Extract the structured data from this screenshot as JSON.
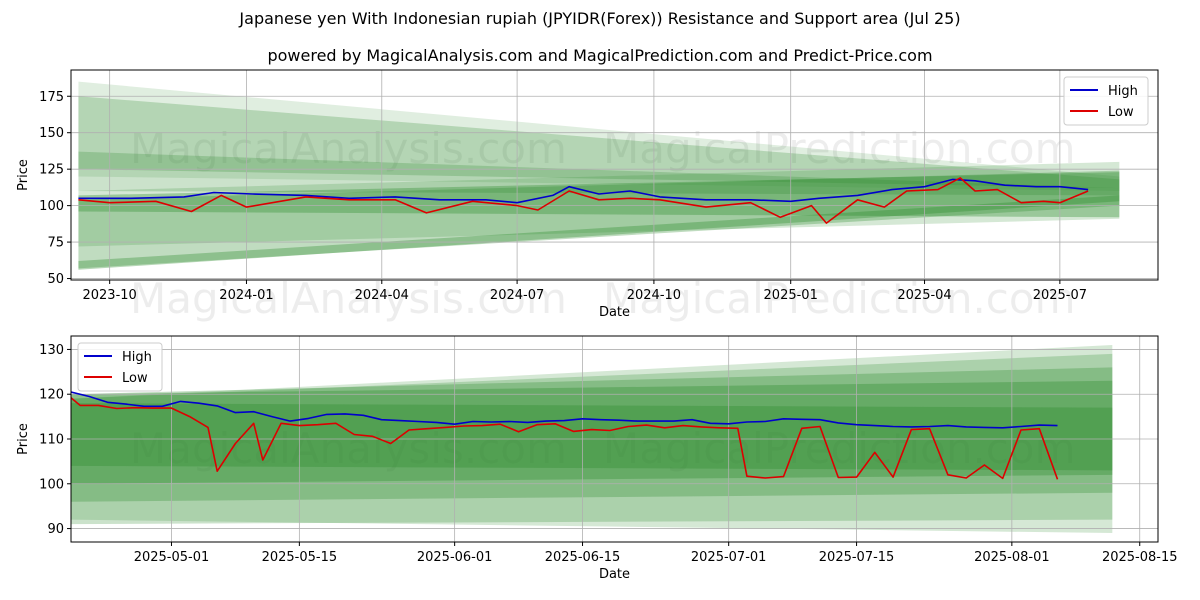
{
  "title": "Japanese yen With Indonesian rupiah (JPYIDR(Forex)) Resistance and Support area (Jul 25)",
  "subtitle": "powered by MagicalAnalysis.com and MagicalPrediction.com and Predict-Price.com",
  "watermarks": [
    "MagicalAnalysis.com",
    "MagicalPrediction.com"
  ],
  "colors": {
    "high": "#0000cc",
    "low": "#dd0000",
    "band": "#2e8b2e",
    "grid": "#b0b0b0"
  },
  "chart_data": [
    {
      "type": "line",
      "xlabel": "Date",
      "ylabel": "Price",
      "xlim": [
        "2023-09-05",
        "2025-09-05"
      ],
      "ylim": [
        49,
        193
      ],
      "xticks": [
        "2023-10",
        "2024-01",
        "2024-04",
        "2024-07",
        "2024-10",
        "2025-01",
        "2025-04",
        "2025-07"
      ],
      "xtick_dates": [
        "2023-10-01",
        "2024-01-01",
        "2024-04-01",
        "2024-07-01",
        "2024-10-01",
        "2025-01-01",
        "2025-04-01",
        "2025-07-01"
      ],
      "yticks": [
        50,
        75,
        100,
        125,
        150,
        175
      ],
      "grid": true,
      "legend": "top-right",
      "series": [
        {
          "name": "High",
          "points": [
            [
              "2023-09-10",
              105
            ],
            [
              "2023-10-15",
              105
            ],
            [
              "2023-11-20",
              106
            ],
            [
              "2023-12-10",
              109
            ],
            [
              "2024-01-05",
              108
            ],
            [
              "2024-02-10",
              107
            ],
            [
              "2024-03-10",
              105
            ],
            [
              "2024-04-10",
              106
            ],
            [
              "2024-05-10",
              104
            ],
            [
              "2024-06-10",
              104
            ],
            [
              "2024-07-01",
              102
            ],
            [
              "2024-07-25",
              107
            ],
            [
              "2024-08-05",
              113
            ],
            [
              "2024-08-25",
              108
            ],
            [
              "2024-09-15",
              110
            ],
            [
              "2024-10-05",
              106
            ],
            [
              "2024-11-05",
              104
            ],
            [
              "2024-12-05",
              104
            ],
            [
              "2025-01-01",
              103
            ],
            [
              "2025-01-20",
              105
            ],
            [
              "2025-02-15",
              107
            ],
            [
              "2025-03-10",
              111
            ],
            [
              "2025-04-01",
              113
            ],
            [
              "2025-04-20",
              118
            ],
            [
              "2025-05-05",
              117
            ],
            [
              "2025-05-25",
              114
            ],
            [
              "2025-06-15",
              113
            ],
            [
              "2025-07-01",
              113
            ],
            [
              "2025-07-20",
              111
            ]
          ]
        },
        {
          "name": "Low",
          "points": [
            [
              "2023-09-10",
              104
            ],
            [
              "2023-10-01",
              102
            ],
            [
              "2023-11-01",
              103
            ],
            [
              "2023-11-25",
              96
            ],
            [
              "2023-12-15",
              107
            ],
            [
              "2024-01-01",
              99
            ],
            [
              "2024-02-10",
              106
            ],
            [
              "2024-03-10",
              104
            ],
            [
              "2024-04-10",
              104
            ],
            [
              "2024-05-01",
              95
            ],
            [
              "2024-06-01",
              103
            ],
            [
              "2024-07-01",
              100
            ],
            [
              "2024-07-15",
              97
            ],
            [
              "2024-08-05",
              110
            ],
            [
              "2024-08-25",
              104
            ],
            [
              "2024-09-15",
              105
            ],
            [
              "2024-10-05",
              104
            ],
            [
              "2024-11-05",
              99
            ],
            [
              "2024-12-05",
              102
            ],
            [
              "2024-12-25",
              92
            ],
            [
              "2025-01-15",
              100
            ],
            [
              "2025-01-25",
              88
            ],
            [
              "2025-02-15",
              104
            ],
            [
              "2025-03-05",
              99
            ],
            [
              "2025-03-20",
              110
            ],
            [
              "2025-04-10",
              111
            ],
            [
              "2025-04-25",
              119
            ],
            [
              "2025-05-05",
              110
            ],
            [
              "2025-05-20",
              111
            ],
            [
              "2025-06-05",
              102
            ],
            [
              "2025-06-20",
              103
            ],
            [
              "2025-07-01",
              102
            ],
            [
              "2025-07-20",
              110
            ]
          ]
        }
      ],
      "bands": [
        {
          "x": [
            "2023-09-10",
            "2025-08-10"
          ],
          "top": [
            185,
            120
          ],
          "bottom": [
            120,
            110
          ],
          "opacity": 0.15
        },
        {
          "x": [
            "2023-09-10",
            "2025-08-10"
          ],
          "top": [
            175,
            118
          ],
          "bottom": [
            125,
            112
          ],
          "opacity": 0.25
        },
        {
          "x": [
            "2023-09-10",
            "2025-08-10"
          ],
          "top": [
            137,
            112
          ],
          "bottom": [
            110,
            107
          ],
          "opacity": 0.25
        },
        {
          "x": [
            "2023-09-10",
            "2025-08-10"
          ],
          "top": [
            110,
            130
          ],
          "bottom": [
            72,
            91
          ],
          "opacity": 0.2
        },
        {
          "x": [
            "2023-09-10",
            "2025-08-10"
          ],
          "top": [
            104,
            124
          ],
          "bottom": [
            57,
            100
          ],
          "opacity": 0.3
        },
        {
          "x": [
            "2023-09-10",
            "2025-08-10"
          ],
          "top": [
            107,
            123
          ],
          "bottom": [
            96,
            92
          ],
          "opacity": 0.35
        },
        {
          "x": [
            "2023-09-10",
            "2025-08-10"
          ],
          "top": [
            62,
            107
          ],
          "bottom": [
            56,
            103
          ],
          "opacity": 0.35
        }
      ]
    },
    {
      "type": "line",
      "xlabel": "Date",
      "ylabel": "Price",
      "xlim": [
        "2025-04-20",
        "2025-08-17"
      ],
      "ylim": [
        87,
        133
      ],
      "xticks": [
        "2025-05-01",
        "2025-05-15",
        "2025-06-01",
        "2025-06-15",
        "2025-07-01",
        "2025-07-15",
        "2025-08-01",
        "2025-08-15"
      ],
      "yticks": [
        90,
        100,
        110,
        120,
        130
      ],
      "grid": true,
      "legend": "top-left",
      "series": [
        {
          "name": "High",
          "points": [
            [
              "2025-04-20",
              120.5
            ],
            [
              "2025-04-22",
              119.5
            ],
            [
              "2025-04-24",
              118.2
            ],
            [
              "2025-04-26",
              117.8
            ],
            [
              "2025-04-28",
              117.3
            ],
            [
              "2025-04-30",
              117.3
            ],
            [
              "2025-05-02",
              118.4
            ],
            [
              "2025-05-04",
              118.0
            ],
            [
              "2025-05-06",
              117.4
            ],
            [
              "2025-05-08",
              115.9
            ],
            [
              "2025-05-10",
              116.1
            ],
            [
              "2025-05-12",
              115.0
            ],
            [
              "2025-05-14",
              114.0
            ],
            [
              "2025-05-16",
              114.6
            ],
            [
              "2025-05-18",
              115.5
            ],
            [
              "2025-05-20",
              115.6
            ],
            [
              "2025-05-22",
              115.3
            ],
            [
              "2025-05-24",
              114.3
            ],
            [
              "2025-05-26",
              114.1
            ],
            [
              "2025-05-28",
              113.9
            ],
            [
              "2025-05-30",
              113.7
            ],
            [
              "2025-06-01",
              113.3
            ],
            [
              "2025-06-03",
              113.9
            ],
            [
              "2025-06-05",
              113.8
            ],
            [
              "2025-06-07",
              113.9
            ],
            [
              "2025-06-09",
              113.7
            ],
            [
              "2025-06-11",
              114.0
            ],
            [
              "2025-06-13",
              114.1
            ],
            [
              "2025-06-15",
              114.5
            ],
            [
              "2025-06-17",
              114.3
            ],
            [
              "2025-06-19",
              114.2
            ],
            [
              "2025-06-21",
              114.0
            ],
            [
              "2025-06-23",
              114.0
            ],
            [
              "2025-06-25",
              114.0
            ],
            [
              "2025-06-27",
              114.3
            ],
            [
              "2025-06-29",
              113.5
            ],
            [
              "2025-07-01",
              113.4
            ],
            [
              "2025-07-03",
              113.8
            ],
            [
              "2025-07-05",
              113.9
            ],
            [
              "2025-07-07",
              114.5
            ],
            [
              "2025-07-09",
              114.4
            ],
            [
              "2025-07-11",
              114.3
            ],
            [
              "2025-07-13",
              113.6
            ],
            [
              "2025-07-15",
              113.2
            ],
            [
              "2025-07-17",
              113.0
            ],
            [
              "2025-07-19",
              112.8
            ],
            [
              "2025-07-21",
              112.7
            ],
            [
              "2025-07-23",
              112.8
            ],
            [
              "2025-07-25",
              113.0
            ],
            [
              "2025-07-27",
              112.7
            ],
            [
              "2025-07-29",
              112.6
            ],
            [
              "2025-07-31",
              112.5
            ],
            [
              "2025-08-02",
              112.8
            ],
            [
              "2025-08-04",
              113.1
            ],
            [
              "2025-08-06",
              113.0
            ]
          ]
        },
        {
          "name": "Low",
          "points": [
            [
              "2025-04-20",
              119.2
            ],
            [
              "2025-04-21",
              117.5
            ],
            [
              "2025-04-23",
              117.5
            ],
            [
              "2025-04-25",
              116.8
            ],
            [
              "2025-04-27",
              117.0
            ],
            [
              "2025-04-29",
              116.9
            ],
            [
              "2025-05-01",
              116.9
            ],
            [
              "2025-05-03",
              115.0
            ],
            [
              "2025-05-05",
              112.6
            ],
            [
              "2025-05-06",
              102.8
            ],
            [
              "2025-05-08",
              109.0
            ],
            [
              "2025-05-10",
              113.5
            ],
            [
              "2025-05-11",
              105.3
            ],
            [
              "2025-05-13",
              113.5
            ],
            [
              "2025-05-15",
              113.0
            ],
            [
              "2025-05-17",
              113.2
            ],
            [
              "2025-05-19",
              113.5
            ],
            [
              "2025-05-21",
              111.0
            ],
            [
              "2025-05-23",
              110.6
            ],
            [
              "2025-05-25",
              109.0
            ],
            [
              "2025-05-27",
              112.0
            ],
            [
              "2025-05-29",
              112.3
            ],
            [
              "2025-05-31",
              112.6
            ],
            [
              "2025-06-02",
              112.9
            ],
            [
              "2025-06-04",
              113.0
            ],
            [
              "2025-06-06",
              113.3
            ],
            [
              "2025-06-08",
              111.6
            ],
            [
              "2025-06-10",
              113.2
            ],
            [
              "2025-06-12",
              113.4
            ],
            [
              "2025-06-14",
              111.7
            ],
            [
              "2025-06-16",
              112.1
            ],
            [
              "2025-06-18",
              111.9
            ],
            [
              "2025-06-20",
              112.8
            ],
            [
              "2025-06-22",
              113.1
            ],
            [
              "2025-06-24",
              112.5
            ],
            [
              "2025-06-26",
              113.0
            ],
            [
              "2025-06-28",
              112.7
            ],
            [
              "2025-06-30",
              112.5
            ],
            [
              "2025-07-02",
              112.4
            ],
            [
              "2025-07-03",
              101.7
            ],
            [
              "2025-07-05",
              101.3
            ],
            [
              "2025-07-07",
              101.6
            ],
            [
              "2025-07-09",
              112.4
            ],
            [
              "2025-07-11",
              112.8
            ],
            [
              "2025-07-13",
              101.4
            ],
            [
              "2025-07-15",
              101.5
            ],
            [
              "2025-07-17",
              107.0
            ],
            [
              "2025-07-19",
              101.5
            ],
            [
              "2025-07-21",
              112.1
            ],
            [
              "2025-07-23",
              112.3
            ],
            [
              "2025-07-25",
              102.0
            ],
            [
              "2025-07-27",
              101.3
            ],
            [
              "2025-07-29",
              104.2
            ],
            [
              "2025-07-31",
              101.2
            ],
            [
              "2025-08-02",
              112.0
            ],
            [
              "2025-08-04",
              112.3
            ],
            [
              "2025-08-06",
              101.0
            ]
          ]
        }
      ],
      "bands": [
        {
          "x": [
            "2025-04-20",
            "2025-08-12"
          ],
          "top": [
            119,
            131
          ],
          "bottom": [
            92,
            89
          ],
          "opacity": 0.2
        },
        {
          "x": [
            "2025-04-20",
            "2025-08-12"
          ],
          "top": [
            119,
            129
          ],
          "bottom": [
            91,
            92
          ],
          "opacity": 0.25
        },
        {
          "x": [
            "2025-04-20",
            "2025-08-12"
          ],
          "top": [
            120,
            126
          ],
          "bottom": [
            96,
            98
          ],
          "opacity": 0.3
        },
        {
          "x": [
            "2025-04-20",
            "2025-08-12"
          ],
          "top": [
            120,
            123
          ],
          "bottom": [
            100,
            102
          ],
          "opacity": 0.35
        },
        {
          "x": [
            "2025-04-20",
            "2025-08-12"
          ],
          "top": [
            118,
            117
          ],
          "bottom": [
            104,
            103
          ],
          "opacity": 0.35
        }
      ]
    }
  ]
}
